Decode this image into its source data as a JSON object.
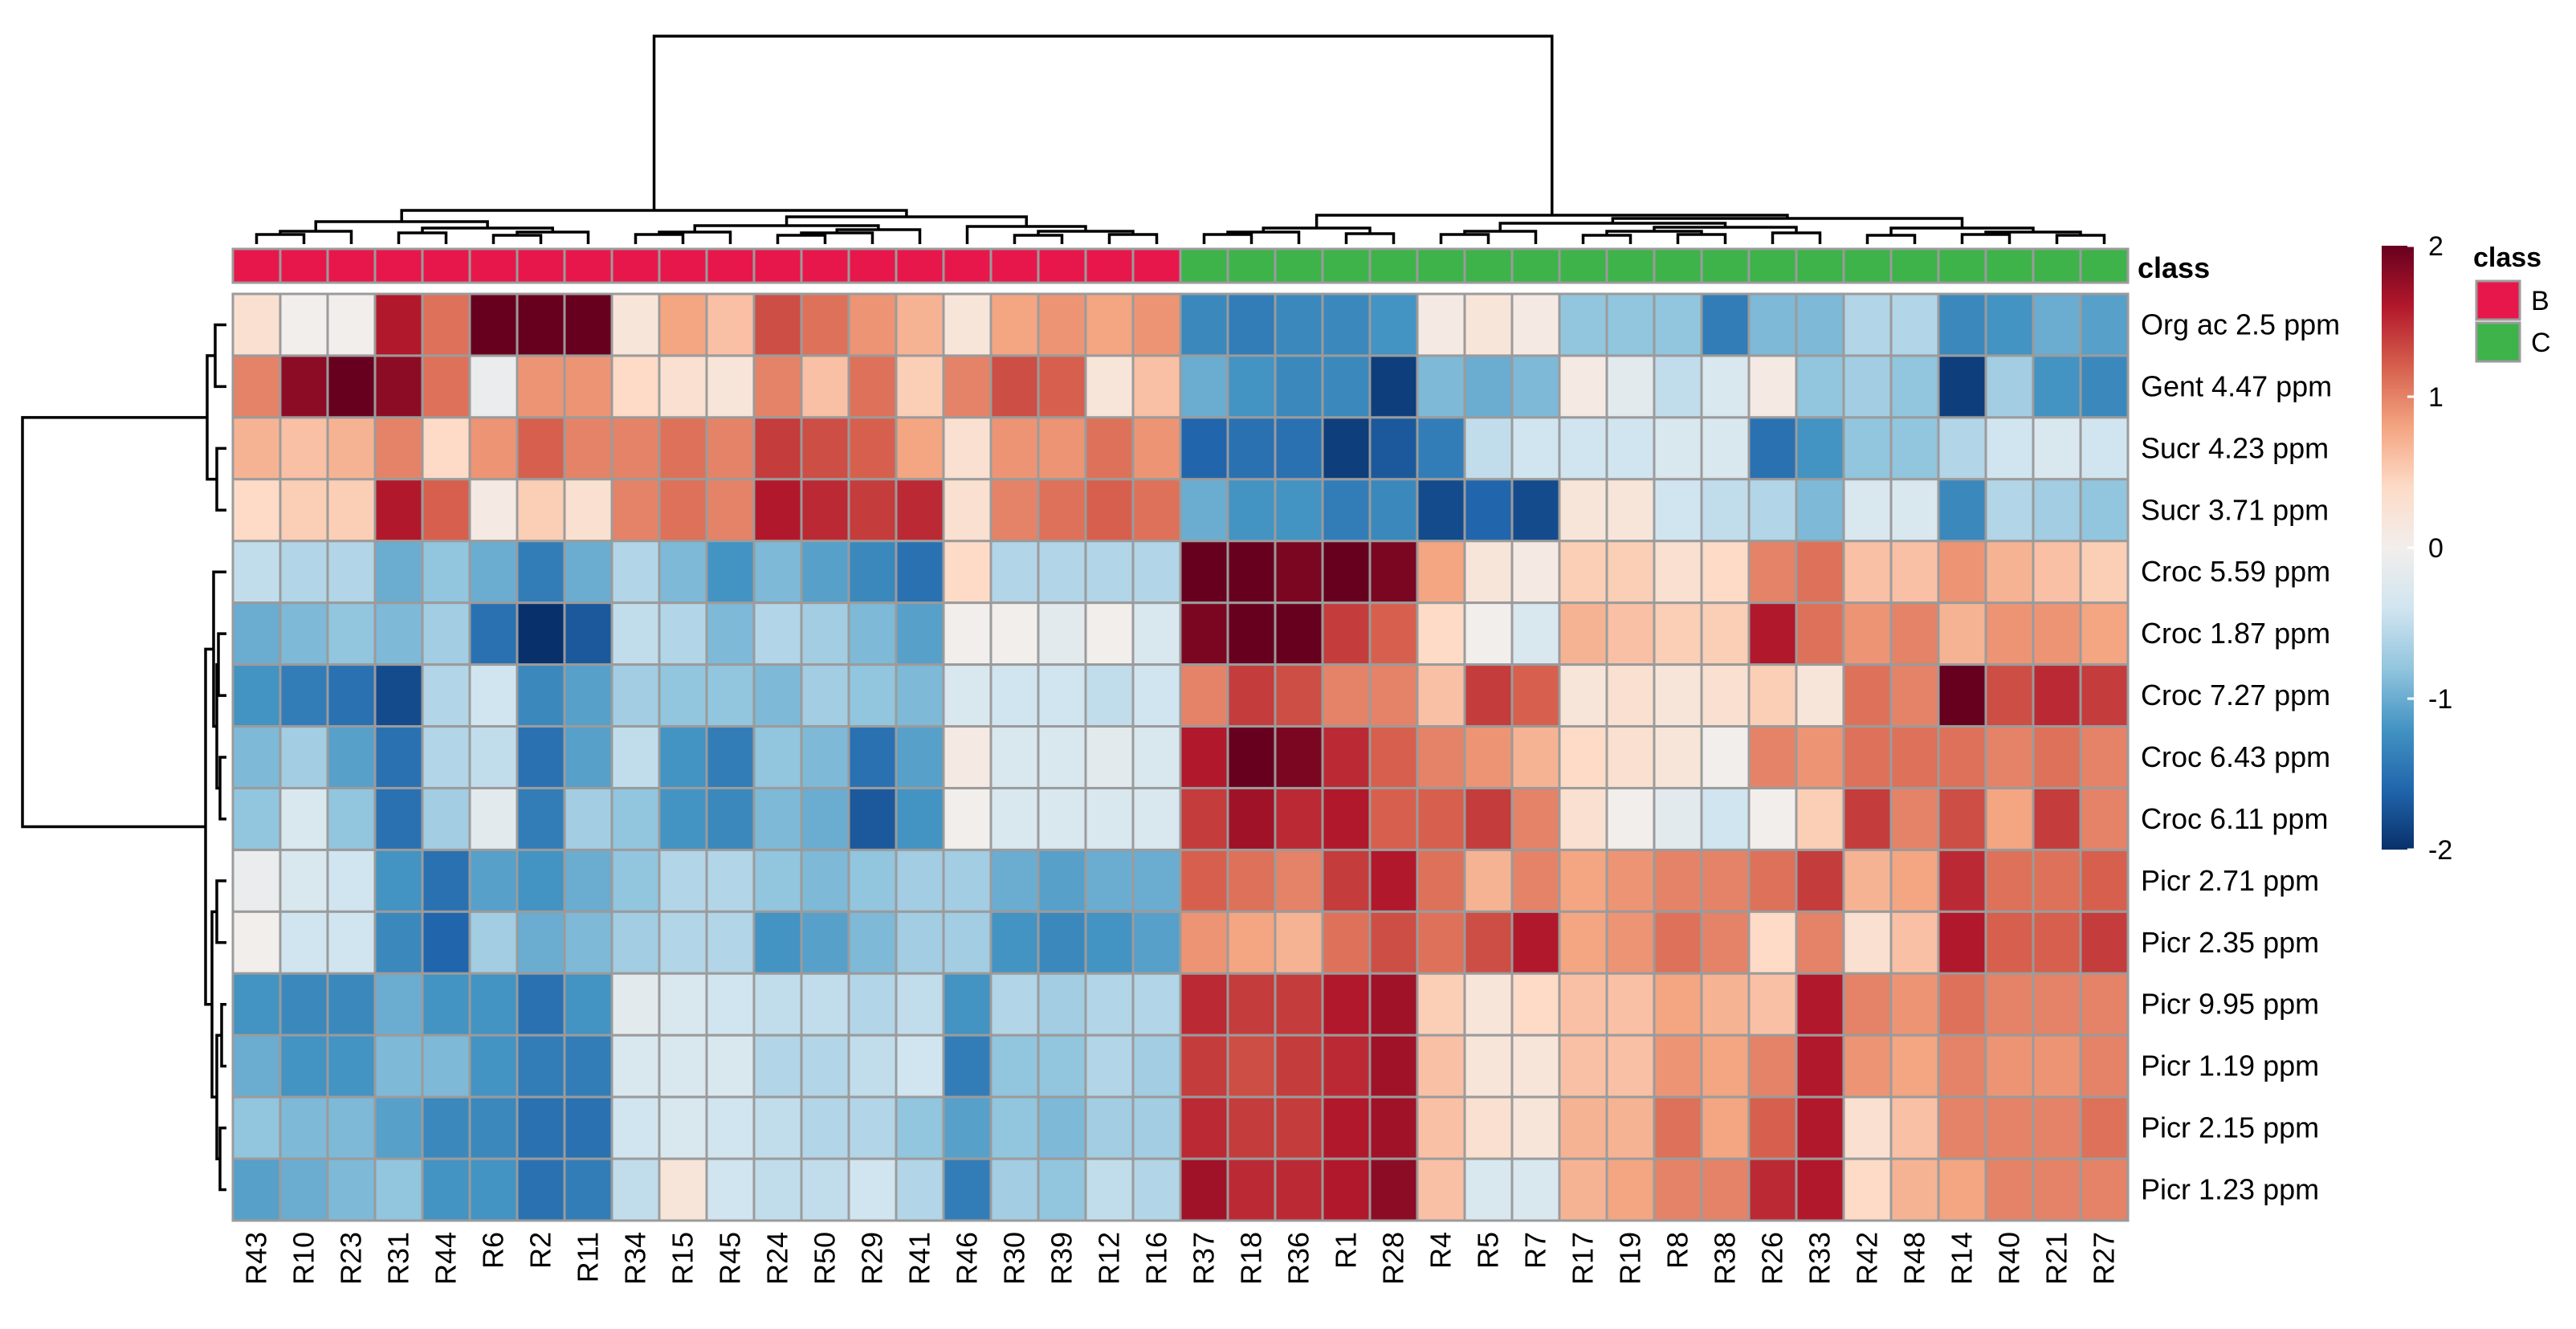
{
  "chart_data": {
    "type": "heatmap",
    "title": "",
    "columns": [
      "R43",
      "R10",
      "R23",
      "R31",
      "R44",
      "R6",
      "R2",
      "R11",
      "R34",
      "R15",
      "R45",
      "R24",
      "R50",
      "R29",
      "R41",
      "R46",
      "R30",
      "R39",
      "R12",
      "R16",
      "R37",
      "R18",
      "R36",
      "R1",
      "R28",
      "R4",
      "R5",
      "R7",
      "R17",
      "R19",
      "R8",
      "R38",
      "R26",
      "R33",
      "R42",
      "R48",
      "R14",
      "R40",
      "R21",
      "R27"
    ],
    "rows": [
      "Org ac 2.5 ppm",
      "Gent  4.47 ppm",
      "Sucr  4.23 ppm",
      "Sucr  3.71 ppm",
      "Croc  5.59 ppm",
      "Croc  1.87 ppm",
      "Croc  7.27 ppm",
      "Croc  6.43 ppm",
      "Croc  6.11 ppm",
      "Picr  2.71 ppm",
      "Picr  2.35 ppm",
      "Picr  9.95 ppm",
      "Picr  1.19 ppm",
      "Picr  2.15 ppm",
      "Picr  1.23 ppm"
    ],
    "column_annotation": {
      "title": "class",
      "legend_title": "class",
      "levels": [
        {
          "label": "B",
          "color": "#E8174B"
        },
        {
          "label": "C",
          "color": "#3DB34A"
        }
      ],
      "values": [
        "B",
        "B",
        "B",
        "B",
        "B",
        "B",
        "B",
        "B",
        "B",
        "B",
        "B",
        "B",
        "B",
        "B",
        "B",
        "B",
        "B",
        "B",
        "B",
        "B",
        "C",
        "C",
        "C",
        "C",
        "C",
        "C",
        "C",
        "C",
        "C",
        "C",
        "C",
        "C",
        "C",
        "C",
        "C",
        "C",
        "C",
        "C",
        "C",
        "C"
      ]
    },
    "color_scale": {
      "min": -2,
      "max": 2,
      "ticks": [
        2,
        1,
        0,
        -1,
        -2
      ],
      "colors": [
        "#08306B",
        "#2166AC",
        "#4393C3",
        "#92C5DE",
        "#D1E5F0",
        "#F2EEEC",
        "#FDDBC7",
        "#F4A582",
        "#D6604D",
        "#B2182B",
        "#67001F"
      ]
    },
    "values": [
      [
        0.3,
        0.0,
        0.0,
        1.6,
        1.1,
        2.0,
        2.1,
        2.1,
        0.2,
        0.8,
        0.6,
        1.3,
        1.1,
        0.9,
        0.7,
        0.2,
        0.8,
        0.9,
        0.8,
        0.9,
        -1.3,
        -1.4,
        -1.3,
        -1.3,
        -1.2,
        0.1,
        0.2,
        0.1,
        -0.8,
        -0.8,
        -0.8,
        -1.4,
        -0.9,
        -0.9,
        -0.6,
        -0.6,
        -1.3,
        -1.2,
        -1.0,
        -1.1
      ],
      [
        1.0,
        1.8,
        2.2,
        1.8,
        1.1,
        -0.1,
        0.9,
        0.9,
        0.4,
        0.3,
        0.2,
        1.0,
        0.6,
        1.1,
        0.5,
        1.0,
        1.3,
        1.2,
        0.2,
        0.6,
        -1.0,
        -1.2,
        -1.3,
        -1.3,
        -1.9,
        -0.9,
        -1.0,
        -0.9,
        0.1,
        -0.2,
        -0.5,
        -0.3,
        0.1,
        -0.8,
        -0.7,
        -0.8,
        -1.9,
        -0.7,
        -1.2,
        -1.3
      ],
      [
        0.7,
        0.6,
        0.7,
        1.0,
        0.4,
        0.9,
        1.2,
        1.0,
        1.0,
        1.1,
        1.0,
        1.4,
        1.3,
        1.2,
        0.8,
        0.3,
        0.9,
        0.9,
        1.1,
        0.9,
        -1.6,
        -1.5,
        -1.5,
        -1.9,
        -1.7,
        -1.4,
        -0.5,
        -0.4,
        -0.4,
        -0.4,
        -0.3,
        -0.3,
        -1.5,
        -1.2,
        -0.8,
        -0.8,
        -0.6,
        -0.4,
        -0.3,
        -0.4
      ],
      [
        0.4,
        0.5,
        0.5,
        1.6,
        1.2,
        0.1,
        0.5,
        0.3,
        1.0,
        1.1,
        1.0,
        1.6,
        1.5,
        1.4,
        1.5,
        0.3,
        1.0,
        1.1,
        1.2,
        1.1,
        -1.0,
        -1.2,
        -1.2,
        -1.4,
        -1.3,
        -1.8,
        -1.6,
        -1.8,
        0.2,
        0.2,
        -0.4,
        -0.5,
        -0.6,
        -0.9,
        -0.3,
        -0.3,
        -1.3,
        -0.6,
        -0.7,
        -0.8
      ],
      [
        -0.5,
        -0.6,
        -0.6,
        -1.0,
        -0.8,
        -1.0,
        -1.4,
        -1.0,
        -0.6,
        -0.9,
        -1.2,
        -0.9,
        -1.1,
        -1.3,
        -1.5,
        0.4,
        -0.6,
        -0.6,
        -0.6,
        -0.6,
        2.1,
        2.0,
        1.9,
        2.1,
        1.9,
        0.8,
        0.2,
        0.1,
        0.5,
        0.5,
        0.3,
        0.4,
        1.0,
        1.1,
        0.6,
        0.6,
        0.9,
        0.7,
        0.6,
        0.5
      ],
      [
        -1.0,
        -0.9,
        -0.8,
        -0.9,
        -0.7,
        -1.5,
        -2.1,
        -1.7,
        -0.5,
        -0.6,
        -0.9,
        -0.6,
        -0.7,
        -0.9,
        -1.1,
        0.0,
        0.0,
        -0.2,
        0.0,
        -0.3,
        1.9,
        2.0,
        2.0,
        1.4,
        1.2,
        0.4,
        0.0,
        -0.3,
        0.7,
        0.6,
        0.5,
        0.5,
        1.6,
        1.1,
        0.9,
        1.0,
        0.7,
        0.9,
        0.9,
        0.8
      ],
      [
        -1.2,
        -1.4,
        -1.5,
        -1.8,
        -0.6,
        -0.4,
        -1.3,
        -1.1,
        -0.7,
        -0.8,
        -0.8,
        -0.9,
        -0.7,
        -0.8,
        -0.9,
        -0.3,
        -0.4,
        -0.4,
        -0.5,
        -0.4,
        1.0,
        1.4,
        1.3,
        1.0,
        1.0,
        0.6,
        1.4,
        1.2,
        0.2,
        0.3,
        0.2,
        0.3,
        0.5,
        0.2,
        1.1,
        1.0,
        2.0,
        1.3,
        1.5,
        1.4
      ],
      [
        -0.9,
        -0.7,
        -1.1,
        -1.5,
        -0.6,
        -0.5,
        -1.5,
        -1.1,
        -0.5,
        -1.2,
        -1.4,
        -0.8,
        -0.9,
        -1.5,
        -1.1,
        0.1,
        -0.3,
        -0.3,
        -0.2,
        -0.3,
        1.6,
        2.0,
        1.9,
        1.5,
        1.2,
        1.0,
        0.9,
        0.7,
        0.4,
        0.3,
        0.2,
        0.0,
        1.0,
        0.9,
        1.1,
        1.1,
        1.1,
        1.0,
        1.1,
        1.0
      ],
      [
        -0.8,
        -0.3,
        -0.8,
        -1.5,
        -0.7,
        -0.2,
        -1.4,
        -0.7,
        -0.8,
        -1.2,
        -1.3,
        -0.9,
        -1.0,
        -1.7,
        -1.2,
        0.0,
        -0.3,
        -0.3,
        -0.3,
        -0.3,
        1.4,
        1.7,
        1.5,
        1.6,
        1.2,
        1.2,
        1.4,
        1.0,
        0.3,
        0.0,
        -0.2,
        -0.4,
        0.0,
        0.5,
        1.4,
        1.0,
        1.3,
        0.8,
        1.4,
        1.0
      ],
      [
        -0.1,
        -0.3,
        -0.4,
        -1.2,
        -1.5,
        -1.1,
        -1.2,
        -1.0,
        -0.8,
        -0.6,
        -0.6,
        -0.8,
        -0.9,
        -0.8,
        -0.7,
        -0.7,
        -1.0,
        -1.1,
        -1.0,
        -1.0,
        1.2,
        1.1,
        1.0,
        1.4,
        1.6,
        1.1,
        0.7,
        1.0,
        0.8,
        0.9,
        1.0,
        1.0,
        1.1,
        1.4,
        0.7,
        0.8,
        1.5,
        1.1,
        1.1,
        1.2
      ],
      [
        0.0,
        -0.4,
        -0.4,
        -1.3,
        -1.6,
        -0.7,
        -1.0,
        -0.9,
        -0.7,
        -0.6,
        -0.6,
        -1.2,
        -1.1,
        -0.9,
        -0.7,
        -0.7,
        -1.2,
        -1.3,
        -1.2,
        -1.1,
        0.9,
        0.8,
        0.7,
        1.1,
        1.3,
        1.1,
        1.3,
        1.6,
        0.8,
        0.9,
        1.1,
        1.0,
        0.4,
        1.0,
        0.3,
        0.6,
        1.6,
        1.2,
        1.2,
        1.4
      ],
      [
        -1.2,
        -1.3,
        -1.3,
        -1.0,
        -1.2,
        -1.2,
        -1.5,
        -1.2,
        -0.2,
        -0.3,
        -0.4,
        -0.5,
        -0.5,
        -0.6,
        -0.5,
        -1.2,
        -0.6,
        -0.7,
        -0.6,
        -0.6,
        1.5,
        1.4,
        1.4,
        1.6,
        1.7,
        0.5,
        0.2,
        0.4,
        0.6,
        0.6,
        0.8,
        0.7,
        0.6,
        1.6,
        1.0,
        0.9,
        1.1,
        1.0,
        1.0,
        1.0
      ],
      [
        -1.0,
        -1.2,
        -1.2,
        -0.9,
        -0.9,
        -1.2,
        -1.4,
        -1.4,
        -0.3,
        -0.3,
        -0.3,
        -0.6,
        -0.6,
        -0.5,
        -0.4,
        -1.4,
        -0.8,
        -0.8,
        -0.6,
        -0.7,
        1.4,
        1.3,
        1.4,
        1.5,
        1.7,
        0.6,
        0.2,
        0.2,
        0.6,
        0.6,
        0.9,
        0.8,
        1.0,
        1.6,
        0.9,
        0.8,
        1.0,
        0.9,
        0.9,
        1.0
      ],
      [
        -0.8,
        -0.9,
        -0.9,
        -1.1,
        -1.3,
        -1.3,
        -1.5,
        -1.5,
        -0.4,
        -0.3,
        -0.4,
        -0.5,
        -0.6,
        -0.6,
        -0.8,
        -1.1,
        -0.8,
        -0.9,
        -0.7,
        -0.7,
        1.5,
        1.4,
        1.4,
        1.6,
        1.7,
        0.6,
        0.3,
        0.2,
        0.7,
        0.7,
        1.1,
        0.8,
        1.2,
        1.6,
        0.3,
        0.6,
        1.0,
        1.0,
        1.0,
        1.1
      ],
      [
        -1.1,
        -1.0,
        -0.9,
        -0.8,
        -1.2,
        -1.2,
        -1.5,
        -1.4,
        -0.5,
        0.2,
        -0.4,
        -0.5,
        -0.5,
        -0.4,
        -0.6,
        -1.4,
        -0.7,
        -0.8,
        -0.5,
        -0.6,
        1.7,
        1.5,
        1.5,
        1.6,
        1.8,
        0.6,
        -0.3,
        -0.3,
        0.7,
        0.8,
        1.0,
        1.0,
        1.5,
        1.6,
        0.4,
        0.7,
        0.8,
        1.0,
        1.0,
        1.0
      ]
    ]
  }
}
